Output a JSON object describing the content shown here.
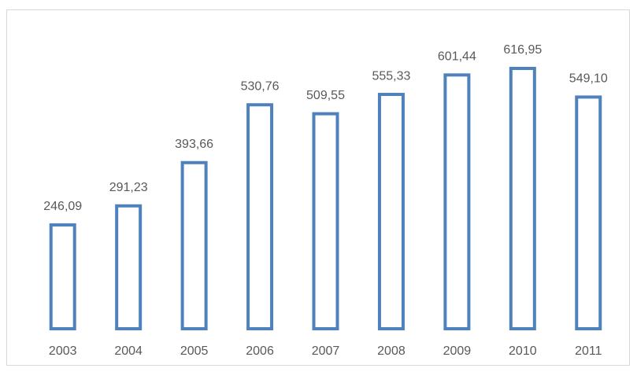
{
  "chart_data": {
    "type": "bar",
    "categories": [
      "2003",
      "2004",
      "2005",
      "2006",
      "2007",
      "2008",
      "2009",
      "2010",
      "2011"
    ],
    "values": [
      246.09,
      291.23,
      393.66,
      530.76,
      509.55,
      555.33,
      601.44,
      616.95,
      549.1
    ],
    "value_labels": [
      "246,09",
      "291,23",
      "393,66",
      "530,76",
      "509,55",
      "555,33",
      "601,44",
      "616,95",
      "549,10"
    ],
    "color": "#4f81bd"
  }
}
